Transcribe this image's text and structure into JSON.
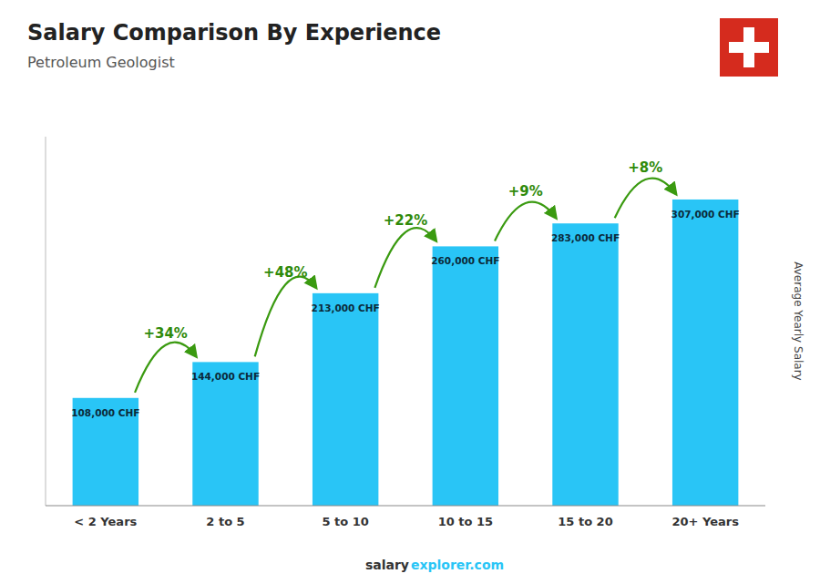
{
  "chart_data": {
    "type": "bar",
    "title": "Salary Comparison By Experience",
    "subtitle": "Petroleum Geologist",
    "categories": [
      "< 2 Years",
      "2 to 5",
      "5 to 10",
      "10 to 15",
      "15 to 20",
      "20+ Years"
    ],
    "values": [
      108000,
      144000,
      213000,
      260000,
      283000,
      307000
    ],
    "value_labels": [
      "108,000 CHF",
      "144,000 CHF",
      "213,000 CHF",
      "260,000 CHF",
      "283,000 CHF",
      "307,000 CHF"
    ],
    "annotations": [
      "+34%",
      "+48%",
      "+22%",
      "+9%",
      "+8%"
    ],
    "ylabel": "Average Yearly Salary",
    "footer": [
      "salary",
      "explorer.com"
    ],
    "color": "#29C5F6",
    "ylim": [
      0,
      370000
    ],
    "grid": false,
    "data_labels": true,
    "tick_labels": "x"
  }
}
